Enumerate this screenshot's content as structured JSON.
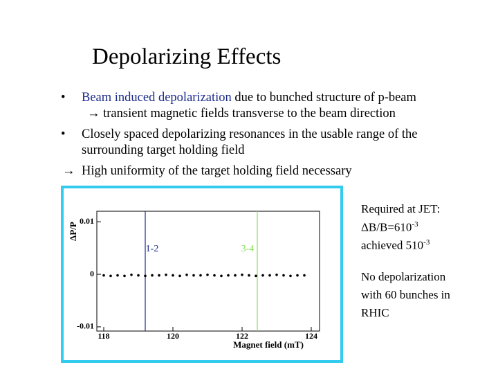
{
  "header": {
    "title": "Depolarizing Effects"
  },
  "bullets": [
    {
      "marker": "•",
      "highlight": "Beam induced depolarization",
      "text": " due to bunched structure of p-beam"
    },
    {
      "marker": "",
      "highlight": "",
      "text": "→ transient magnetic fields transverse to the beam direction"
    },
    {
      "marker": "•",
      "highlight": "",
      "text": "Closely spaced depolarizing resonances in the usable range of the"
    },
    {
      "marker": "",
      "highlight": "",
      "text": "surrounding target holding field"
    },
    {
      "marker": "→",
      "highlight": "",
      "text": "High uniformity of the target holding field necessary"
    }
  ],
  "side_notes": {
    "required": "Required at JET:",
    "required_value": "ΔB/B=610",
    "required_exp": "-3",
    "achieved": "achieved 510",
    "achieved_exp": "-3",
    "result": [
      "No depolarization",
      "with 60 bunches in",
      "RHIC"
    ]
  },
  "chart_data": {
    "type": "scatter",
    "xlabel": "Magnet field (mT)",
    "ylabel": "ΔP/P",
    "color": "#000000",
    "x": [
      118.0,
      118.2,
      118.4,
      118.6,
      118.8,
      119.0,
      119.2,
      119.4,
      119.6,
      119.8,
      120.0,
      120.2,
      120.4,
      120.6,
      120.8,
      121.0,
      121.2,
      121.4,
      121.6,
      121.8,
      122.0,
      122.2,
      122.4,
      122.6,
      122.8,
      123.0,
      123.2,
      123.4,
      123.6,
      123.8
    ],
    "values": [
      -0.0002,
      -0.0003,
      -0.0002,
      -0.0003,
      -0.0001,
      -0.0002,
      -0.0003,
      -0.0002,
      -0.0002,
      -0.0001,
      -0.0002,
      -0.0003,
      -0.0001,
      -0.0002,
      -0.0002,
      -0.0001,
      -0.0002,
      -0.0003,
      -0.0002,
      -0.0002,
      -0.0001,
      -0.0002,
      -0.0003,
      -0.0002,
      -0.0002,
      -0.0001,
      -0.0002,
      -0.0003,
      -0.0002,
      -0.0002
    ],
    "xlim": [
      117.8,
      124.24
    ],
    "ylim": [
      -0.0108,
      0.012
    ],
    "xticks": [
      118,
      120,
      122,
      124
    ],
    "yticks": [
      -0.01,
      0,
      0.01
    ],
    "vlines": [
      {
        "x": 119.2,
        "label": "1-2",
        "color": "#1a2a8a"
      },
      {
        "x": 122.44,
        "label": "3-4",
        "color": "#88dd55"
      }
    ]
  }
}
